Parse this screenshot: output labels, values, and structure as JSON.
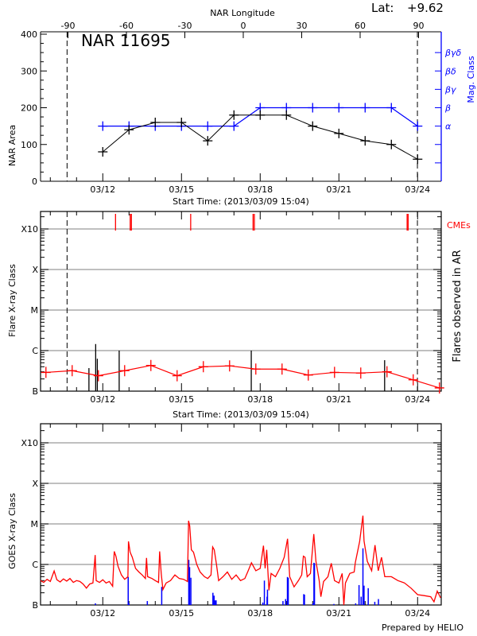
{
  "header": {
    "lat_label": "Lat:",
    "lat_value": "+9.62"
  },
  "colors": {
    "area": "#000000",
    "mag": "#0000ff",
    "flare_avg": "#ff0000",
    "cme": "#ff0000",
    "goes": "#ff0000",
    "goes_events": "#0000ff",
    "grid": "#999999"
  },
  "chart_data": [
    {
      "type": "line",
      "title": "NAR 11695",
      "xlabel": "Start Time: (2013/03/09 15:04)",
      "ylabel": "NAR Area",
      "y2label": "Mag. Class",
      "top_axis_label": "NAR Longitude",
      "top_axis_ticks": [
        "-90",
        "-60",
        "-30",
        "0",
        "30",
        "60",
        "90"
      ],
      "x_range": [
        "2013-03-09 15:04",
        "2013-03-24 21:10"
      ],
      "x_tick_labels": [
        "03/12",
        "03/15",
        "03/18",
        "03/21",
        "03/24"
      ],
      "ylim": [
        0,
        400
      ],
      "y_ticks": [
        "0",
        "100",
        "200",
        "300",
        "400"
      ],
      "y2_levels": [
        "",
        "",
        "α",
        "β",
        "βγ",
        "βδ",
        "βγδ"
      ],
      "limb_lines": [
        "2013-03-10 15:20",
        "2013-03-23 23:50"
      ],
      "dates": [
        "2013-03-12 00:00",
        "2013-03-13 00:00",
        "2013-03-14 00:00",
        "2013-03-15 00:00",
        "2013-03-16 00:00",
        "2013-03-17 00:00",
        "2013-03-18 00:00",
        "2013-03-19 00:00",
        "2013-03-20 00:00",
        "2013-03-21 00:00",
        "2013-03-22 00:00",
        "2013-03-23 00:00",
        "2013-03-24 00:00"
      ],
      "series": [
        {
          "values": [
            80,
            140,
            160,
            160,
            110,
            180,
            180,
            180,
            150,
            130,
            110,
            100,
            60
          ]
        },
        {
          "values": [
            "α",
            "α",
            "α",
            "α",
            "α",
            "α",
            "β",
            "β",
            "β",
            "β",
            "β",
            "β",
            "α"
          ]
        }
      ]
    },
    {
      "type": "line",
      "xlabel": "Start Time: (2013/03/09 15:04)",
      "ylabel": "Flare X-ray Class",
      "y2label": "Flares observed in AR",
      "cme_label": "CMEs",
      "y_scale": "log",
      "y_ticks": [
        "B",
        "C",
        "M",
        "X",
        "X10"
      ],
      "x_tick_labels": [
        "03/12",
        "03/15",
        "03/18",
        "03/21",
        "03/24"
      ],
      "grid": true,
      "avg_series": {
        "start": "2013-03-09 20:00",
        "step_days": 1,
        "flux": [
          2.9e-07,
          3.2e-07,
          2.4e-07,
          3.2e-07,
          4.3e-07,
          2.4e-07,
          4e-07,
          4.2e-07,
          3.5e-07,
          3.5e-07,
          2.5e-07,
          2.9e-07,
          2.8e-07,
          3e-07,
          1.9e-07,
          1.2e-07
        ]
      },
      "flares": [
        [
          "2013-03-11 11:20",
          3.7e-07
        ],
        [
          "2013-03-11 17:30",
          1.45e-06
        ],
        [
          "2013-03-11 19:00",
          6.3e-07
        ],
        [
          "2013-03-12 15:00",
          1e-06
        ],
        [
          "2013-03-17 15:50",
          1e-06
        ],
        [
          "2013-03-22 17:50",
          5.8e-07
        ]
      ],
      "cmes": [
        "2013-03-12 11:40",
        "2013-03-13 01:05",
        "2013-03-13 02:10",
        "2013-03-15 08:25",
        "2013-03-17 17:30",
        "2013-03-17 18:40",
        "2013-03-23 14:25",
        "2013-03-23 15:20"
      ]
    },
    {
      "type": "line",
      "ylabel": "GOES X-ray Class",
      "y_scale": "log",
      "y_ticks": [
        "B",
        "C",
        "M",
        "X",
        "X10"
      ],
      "x_tick_labels": [
        "03/12",
        "03/15",
        "03/18",
        "03/21",
        "03/24"
      ],
      "grid": true,
      "goes_flux": [
        [
          "2013-03-09 15:04",
          4e-07
        ],
        [
          "2013-03-09 18:00",
          3.6e-07
        ],
        [
          "2013-03-09 21:00",
          4.3e-07
        ],
        [
          "2013-03-10 00:00",
          3.8e-07
        ],
        [
          "2013-03-10 03:30",
          6.9e-07
        ],
        [
          "2013-03-10 06:00",
          4.2e-07
        ],
        [
          "2013-03-10 09:00",
          3.7e-07
        ],
        [
          "2013-03-10 12:00",
          4.4e-07
        ],
        [
          "2013-03-10 15:00",
          3.9e-07
        ],
        [
          "2013-03-10 18:00",
          4.5e-07
        ],
        [
          "2013-03-10 21:00",
          3.6e-07
        ],
        [
          "2013-03-11 00:00",
          4e-07
        ],
        [
          "2013-03-11 03:00",
          3.8e-07
        ],
        [
          "2013-03-11 06:00",
          3.3e-07
        ],
        [
          "2013-03-11 09:00",
          2.6e-07
        ],
        [
          "2013-03-11 12:00",
          3.3e-07
        ],
        [
          "2013-03-11 15:00",
          3.5e-07
        ],
        [
          "2013-03-11 17:00",
          1.7e-06
        ],
        [
          "2013-03-11 18:00",
          4e-07
        ],
        [
          "2013-03-11 21:00",
          3.6e-07
        ],
        [
          "2013-03-12 00:00",
          4.2e-07
        ],
        [
          "2013-03-12 03:00",
          3.5e-07
        ],
        [
          "2013-03-12 06:00",
          3.8e-07
        ],
        [
          "2013-03-12 09:00",
          2.9e-07
        ],
        [
          "2013-03-12 10:30",
          2.1e-06
        ],
        [
          "2013-03-12 12:00",
          1.6e-06
        ],
        [
          "2013-03-12 14:00",
          9e-07
        ],
        [
          "2013-03-12 17:00",
          5.5e-07
        ],
        [
          "2013-03-12 20:00",
          4.3e-07
        ],
        [
          "2013-03-12 23:00",
          5e-07
        ],
        [
          "2013-03-12 23:30",
          3.7e-06
        ],
        [
          "2013-03-13 01:00",
          2e-06
        ],
        [
          "2013-03-13 03:00",
          1.5e-06
        ],
        [
          "2013-03-13 06:00",
          8e-07
        ],
        [
          "2013-03-13 09:00",
          6.5e-07
        ],
        [
          "2013-03-13 12:00",
          5.5e-07
        ],
        [
          "2013-03-13 15:00",
          4.5e-07
        ],
        [
          "2013-03-13 16:00",
          1.45e-06
        ],
        [
          "2013-03-13 17:00",
          5e-07
        ],
        [
          "2013-03-13 21:00",
          4.5e-07
        ],
        [
          "2013-03-14 00:00",
          4e-07
        ],
        [
          "2013-03-14 03:00",
          3.6e-07
        ],
        [
          "2013-03-14 04:00",
          2.1e-06
        ],
        [
          "2013-03-14 05:30",
          6e-07
        ],
        [
          "2013-03-14 07:00",
          2.4e-07
        ],
        [
          "2013-03-14 10:00",
          3.5e-07
        ],
        [
          "2013-03-14 14:00",
          4e-07
        ],
        [
          "2013-03-14 18:00",
          5.5e-07
        ],
        [
          "2013-03-14 22:00",
          4.5e-07
        ],
        [
          "2013-03-15 02:00",
          4.3e-07
        ],
        [
          "2013-03-15 05:30",
          3.8e-07
        ],
        [
          "2013-03-15 06:30",
          1.2e-05
        ],
        [
          "2013-03-15 07:30",
          9e-06
        ],
        [
          "2013-03-15 09:00",
          2.3e-06
        ],
        [
          "2013-03-15 11:00",
          2e-06
        ],
        [
          "2013-03-15 14:00",
          1e-06
        ],
        [
          "2013-03-15 17:00",
          6.5e-07
        ],
        [
          "2013-03-15 21:00",
          5e-07
        ],
        [
          "2013-03-16 00:00",
          4.5e-07
        ],
        [
          "2013-03-16 03:00",
          5.5e-07
        ],
        [
          "2013-03-16 04:30",
          2.7e-06
        ],
        [
          "2013-03-16 06:00",
          2.3e-06
        ],
        [
          "2013-03-16 08:00",
          1e-06
        ],
        [
          "2013-03-16 10:00",
          4e-07
        ],
        [
          "2013-03-16 14:00",
          5e-07
        ],
        [
          "2013-03-16 18:00",
          6.5e-07
        ],
        [
          "2013-03-16 22:00",
          4.3e-07
        ],
        [
          "2013-03-17 02:00",
          5.5e-07
        ],
        [
          "2013-03-17 06:00",
          4e-07
        ],
        [
          "2013-03-17 10:00",
          4.5e-07
        ],
        [
          "2013-03-17 13:00",
          7e-07
        ],
        [
          "2013-03-17 16:00",
          1.1e-06
        ],
        [
          "2013-03-17 20:00",
          7e-07
        ],
        [
          "2013-03-18 00:00",
          8e-07
        ],
        [
          "2013-03-18 03:00",
          2.9e-06
        ],
        [
          "2013-03-18 04:30",
          8e-07
        ],
        [
          "2013-03-18 06:00",
          2.3e-06
        ],
        [
          "2013-03-18 08:00",
          2.3e-07
        ],
        [
          "2013-03-18 10:00",
          6e-07
        ],
        [
          "2013-03-18 14:00",
          5e-07
        ],
        [
          "2013-03-18 18:00",
          8e-07
        ],
        [
          "2013-03-18 22:00",
          1.5e-06
        ],
        [
          "2013-03-19 01:00",
          4.3e-06
        ],
        [
          "2013-03-19 03:00",
          5e-07
        ],
        [
          "2013-03-19 07:00",
          2.8e-07
        ],
        [
          "2013-03-19 11:00",
          4e-07
        ],
        [
          "2013-03-19 14:00",
          5.5e-07
        ],
        [
          "2013-03-19 15:30",
          1.6e-06
        ],
        [
          "2013-03-19 17:00",
          1.5e-06
        ],
        [
          "2013-03-19 19:00",
          5e-07
        ],
        [
          "2013-03-19 22:00",
          6e-07
        ],
        [
          "2013-03-20 01:00",
          5.6e-06
        ],
        [
          "2013-03-20 03:00",
          1.2e-06
        ],
        [
          "2013-03-20 06:00",
          4e-07
        ],
        [
          "2013-03-20 07:30",
          1.6e-07
        ],
        [
          "2013-03-20 10:00",
          3.8e-07
        ],
        [
          "2013-03-20 14:00",
          5e-07
        ],
        [
          "2013-03-20 17:00",
          1.07e-06
        ],
        [
          "2013-03-20 20:00",
          4e-07
        ],
        [
          "2013-03-21 00:00",
          3.5e-07
        ],
        [
          "2013-03-21 03:00",
          6e-07
        ],
        [
          "2013-03-21 04:30",
          1e-07
        ],
        [
          "2013-03-21 06:00",
          3.5e-07
        ],
        [
          "2013-03-21 10:00",
          6e-07
        ],
        [
          "2013-03-21 14:00",
          6.5e-07
        ],
        [
          "2013-03-21 15:00",
          1.1e-06
        ],
        [
          "2013-03-21 19:00",
          3.7e-06
        ],
        [
          "2013-03-21 22:00",
          1.6e-05
        ],
        [
          "2013-03-21 23:00",
          3.8e-06
        ],
        [
          "2013-03-22 02:00",
          1.2e-06
        ],
        [
          "2013-03-22 06:00",
          7e-07
        ],
        [
          "2013-03-22 09:00",
          3e-06
        ],
        [
          "2013-03-22 12:00",
          7e-07
        ],
        [
          "2013-03-22 15:00",
          1.5e-06
        ],
        [
          "2013-03-22 18:00",
          5e-07
        ],
        [
          "2013-03-23 00:00",
          5e-07
        ],
        [
          "2013-03-23 06:00",
          4e-07
        ],
        [
          "2013-03-23 12:00",
          3.5e-07
        ],
        [
          "2013-03-23 18:00",
          2.6e-07
        ],
        [
          "2013-03-24 00:00",
          1.8e-07
        ],
        [
          "2013-03-24 06:00",
          1.7e-07
        ],
        [
          "2013-03-24 12:00",
          1.6e-07
        ],
        [
          "2013-03-24 15:00",
          1.2e-07
        ],
        [
          "2013-03-24 18:00",
          2.2e-07
        ],
        [
          "2013-03-24 21:00",
          1.5e-07
        ]
      ],
      "events": [
        [
          "2013-03-11 17:15",
          1.1e-07
        ],
        [
          "2013-03-12 23:15",
          4.9e-07
        ],
        [
          "2013-03-13 00:00",
          1.1e-07
        ],
        [
          "2013-03-13 16:45",
          1.25e-07
        ],
        [
          "2013-03-14 05:55",
          2.8e-07
        ],
        [
          "2013-03-15 06:40",
          1.3e-06
        ],
        [
          "2013-03-15 07:25",
          8.6e-07
        ],
        [
          "2013-03-15 08:35",
          4.7e-07
        ],
        [
          "2013-03-16 04:45",
          2e-07
        ],
        [
          "2013-03-16 05:50",
          1.7e-07
        ],
        [
          "2013-03-16 06:55",
          1.3e-07
        ],
        [
          "2013-03-16 07:40",
          1.3e-07
        ],
        [
          "2013-03-18 02:25",
          1.15e-07
        ],
        [
          "2013-03-18 03:50",
          4e-07
        ],
        [
          "2013-03-18 06:15",
          1.6e-07
        ],
        [
          "2013-03-18 06:40",
          2.4e-07
        ],
        [
          "2013-03-18 20:50",
          1.25e-07
        ],
        [
          "2013-03-18 23:15",
          1.4e-07
        ],
        [
          "2013-03-19 00:55",
          4.9e-07
        ],
        [
          "2013-03-19 01:40",
          4.7e-07
        ],
        [
          "2013-03-19 15:50",
          1.85e-07
        ],
        [
          "2013-03-19 16:30",
          1.8e-07
        ],
        [
          "2013-03-20 00:15",
          1.1e-07
        ],
        [
          "2013-03-20 01:10",
          1.1e-06
        ],
        [
          "2013-03-20 01:40",
          1.07e-06
        ],
        [
          "2013-03-20 19:25",
          1.06e-07
        ],
        [
          "2013-03-21 15:20",
          1.1e-07
        ],
        [
          "2013-03-21 18:25",
          3.1e-07
        ],
        [
          "2013-03-21 20:20",
          1.6e-07
        ],
        [
          "2013-03-21 22:00",
          2.5e-06
        ],
        [
          "2013-03-21 23:00",
          3e-07
        ],
        [
          "2013-03-22 02:50",
          2.6e-07
        ],
        [
          "2013-03-22 08:50",
          1.2e-07
        ],
        [
          "2013-03-22 12:10",
          1.4e-07
        ]
      ],
      "credit": "Prepared by HELIO"
    }
  ]
}
